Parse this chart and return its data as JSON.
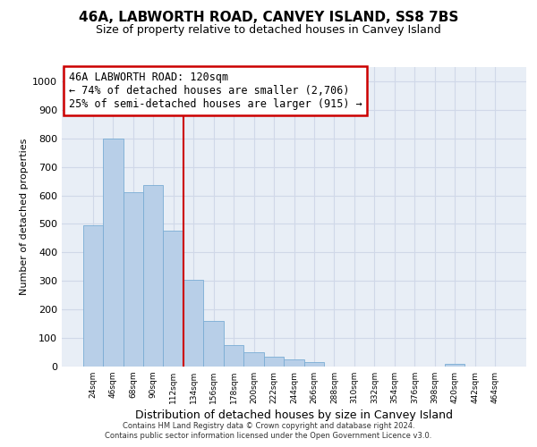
{
  "title1": "46A, LABWORTH ROAD, CANVEY ISLAND, SS8 7BS",
  "title2": "Size of property relative to detached houses in Canvey Island",
  "xlabel": "Distribution of detached houses by size in Canvey Island",
  "ylabel": "Number of detached properties",
  "categories": [
    "24sqm",
    "46sqm",
    "68sqm",
    "90sqm",
    "112sqm",
    "134sqm",
    "156sqm",
    "178sqm",
    "200sqm",
    "222sqm",
    "244sqm",
    "266sqm",
    "288sqm",
    "310sqm",
    "332sqm",
    "354sqm",
    "376sqm",
    "398sqm",
    "420sqm",
    "442sqm",
    "464sqm"
  ],
  "values": [
    495,
    800,
    610,
    635,
    475,
    305,
    160,
    75,
    50,
    35,
    25,
    15,
    0,
    0,
    0,
    0,
    0,
    0,
    8,
    0,
    0
  ],
  "bar_color": "#b8cfe8",
  "bar_edge_color": "#7aacd4",
  "bg_color": "#e8eef6",
  "grid_color": "#d0d8e8",
  "vline_x": 4.5,
  "vline_color": "#cc0000",
  "annotation_text": "46A LABWORTH ROAD: 120sqm\n← 74% of detached houses are smaller (2,706)\n25% of semi-detached houses are larger (915) →",
  "annotation_box_color": "#cc0000",
  "footer1": "Contains HM Land Registry data © Crown copyright and database right 2024.",
  "footer2": "Contains public sector information licensed under the Open Government Licence v3.0.",
  "ylim": [
    0,
    1050
  ],
  "yticks": [
    0,
    100,
    200,
    300,
    400,
    500,
    600,
    700,
    800,
    900,
    1000
  ],
  "title1_fontsize": 11,
  "title2_fontsize": 9,
  "xlabel_fontsize": 9,
  "ylabel_fontsize": 8
}
